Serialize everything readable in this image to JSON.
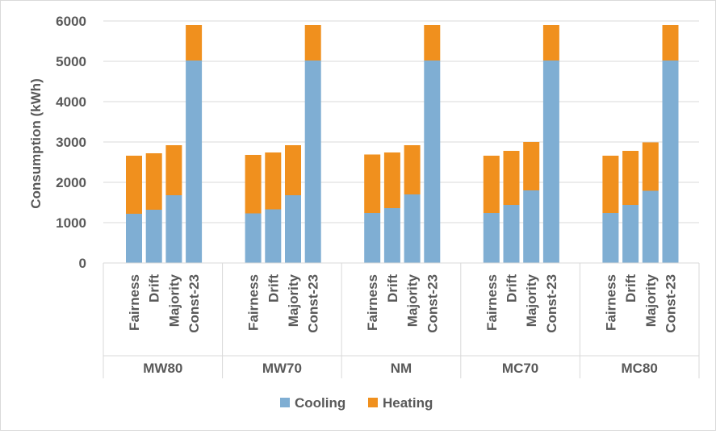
{
  "chart_data": {
    "type": "bar",
    "stacked": true,
    "title": "",
    "ylabel": "Consumption (kWh)",
    "xlabel": "",
    "ylim": [
      0,
      6000
    ],
    "yticks": [
      0,
      1000,
      2000,
      3000,
      4000,
      5000,
      6000
    ],
    "grid": true,
    "legend_position": "bottom",
    "groups": [
      "MW80",
      "MW70",
      "NM",
      "MC70",
      "MC80"
    ],
    "categories": [
      "Fairness",
      "Drift",
      "Majority",
      "Const-23"
    ],
    "series": [
      {
        "name": "Cooling",
        "color": "#7faed3",
        "values": [
          [
            1220,
            1320,
            1680,
            5020
          ],
          [
            1230,
            1330,
            1680,
            5020
          ],
          [
            1240,
            1360,
            1700,
            5020
          ],
          [
            1240,
            1440,
            1800,
            5020
          ],
          [
            1240,
            1440,
            1790,
            5020
          ]
        ]
      },
      {
        "name": "Heating",
        "color": "#f0901e",
        "values": [
          [
            1440,
            1400,
            1240,
            880
          ],
          [
            1450,
            1410,
            1240,
            880
          ],
          [
            1450,
            1380,
            1220,
            880
          ],
          [
            1420,
            1340,
            1200,
            880
          ],
          [
            1420,
            1340,
            1200,
            880
          ]
        ]
      }
    ]
  }
}
